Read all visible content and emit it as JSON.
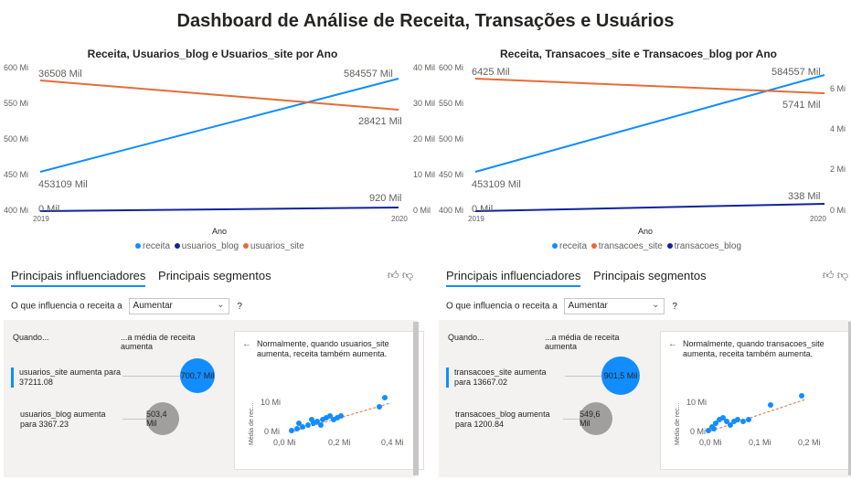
{
  "title": "Dashboard de Análise de Receita, Transações e Usuários",
  "colors": {
    "receita": "#118dff",
    "dark": "#12239e",
    "orange": "#e66c37",
    "accent": "#118dff"
  },
  "charts": [
    {
      "title": "Receita, Usuarios_blog e Usuarios_site por Ano",
      "xlabel": "Ano",
      "x_ticks": [
        "2019",
        "2020"
      ],
      "left_ticks": [
        "600 Mi",
        "550 Mi",
        "500 Mi",
        "450 Mi",
        "400 Mi"
      ],
      "right_ticks": [
        "40 Mil",
        "30 Mil",
        "20 Mil",
        "10 Mil",
        "0 Mil"
      ],
      "labels": {
        "s1_start": "36508 Mil",
        "s1_end": "28421 Mil",
        "r_start": "453109 Mil",
        "r_end": "584557 Mil",
        "s2_start": "0 Mil",
        "s2_end": "920 Mil"
      },
      "legend": [
        "receita",
        "usuarios_blog",
        "usuarios_site"
      ]
    },
    {
      "title": "Receita, Transacoes_site e Transacoes_blog por Ano",
      "xlabel": "Ano",
      "x_ticks": [
        "2019",
        "2020"
      ],
      "left_ticks": [
        "600 Mi",
        "550 Mi",
        "500 Mi",
        "450 Mi",
        "400 Mi"
      ],
      "right_ticks": [
        "6 Mi",
        "4 Mi",
        "2 Mi",
        "0 Mi"
      ],
      "labels": {
        "s1_start": "6425 Mil",
        "s1_end": "5741 Mil",
        "r_start": "453109 Mil",
        "r_end": "584557 Mil",
        "s2_start": "0 Mil",
        "s2_end": "338 Mil"
      },
      "legend": [
        "receita",
        "transacoes_site",
        "transacoes_blog"
      ]
    }
  ],
  "chart_data": [
    {
      "type": "line",
      "title": "Receita, Usuarios_blog e Usuarios_site por Ano",
      "xlabel": "Ano",
      "x": [
        "2019",
        "2020"
      ],
      "series": [
        {
          "name": "receita",
          "values": [
            453109000,
            584557000
          ],
          "axis": "left"
        },
        {
          "name": "usuarios_blog",
          "values": [
            0,
            920000
          ],
          "axis": "right"
        },
        {
          "name": "usuarios_site",
          "values": [
            36508000,
            28421000
          ],
          "axis": "right"
        }
      ],
      "ylim_left": [
        400000000,
        600000000
      ],
      "ylim_right": [
        0,
        40000000
      ]
    },
    {
      "type": "line",
      "title": "Receita, Transacoes_site e Transacoes_blog por Ano",
      "xlabel": "Ano",
      "x": [
        "2019",
        "2020"
      ],
      "series": [
        {
          "name": "receita",
          "values": [
            453109000,
            584557000
          ],
          "axis": "left"
        },
        {
          "name": "transacoes_site",
          "values": [
            6425000,
            5741000
          ],
          "axis": "right"
        },
        {
          "name": "transacoes_blog",
          "values": [
            0,
            338000
          ],
          "axis": "right"
        }
      ],
      "ylim_left": [
        400000000,
        600000000
      ],
      "ylim_right": [
        0,
        7000000
      ]
    }
  ],
  "panels": [
    {
      "tab1": "Principais influenciadores",
      "tab2": "Principais segmentos",
      "question": "O que influencia o receita a",
      "select": "Aumentar",
      "qmark": "?",
      "col1": "Quando...",
      "col2": "...a média de receita aumenta",
      "inf1": "usuarios_site aumenta para 37211.08",
      "inf1_val": "700,7 Mil",
      "inf2": "usuarios_blog aumenta para 3367.23",
      "inf2_val": "503,4 Mil",
      "card": "Normalmente, quando usuarios_site aumenta, receita também aumenta.",
      "ylabel": "Média de rec...",
      "y_ticks": [
        "10 Mi",
        "0 Mi"
      ],
      "x_ticks": [
        "0,0 Mi",
        "0,2 Mi",
        "0,4 Mi"
      ]
    },
    {
      "tab1": "Principais influenciadores",
      "tab2": "Principais segmentos",
      "question": "O que influencia o receita a",
      "select": "Aumentar",
      "qmark": "?",
      "col1": "Quando...",
      "col2": "...a média de receita aumenta",
      "inf1": "transacoes_site aumenta para 13667.02",
      "inf1_val": "901,5 Mil",
      "inf2": "transacoes_blog aumenta para 1200.84",
      "inf2_val": "549,6 Mil",
      "card": "Normalmente, quando transacoes_site aumenta, receita também aumenta.",
      "ylabel": "Média de rec...",
      "y_ticks": [
        "10 Mi",
        "0 Mi"
      ],
      "x_ticks": [
        "0,0 Mi",
        "0,1 Mi",
        "0,2 Mi"
      ]
    }
  ]
}
